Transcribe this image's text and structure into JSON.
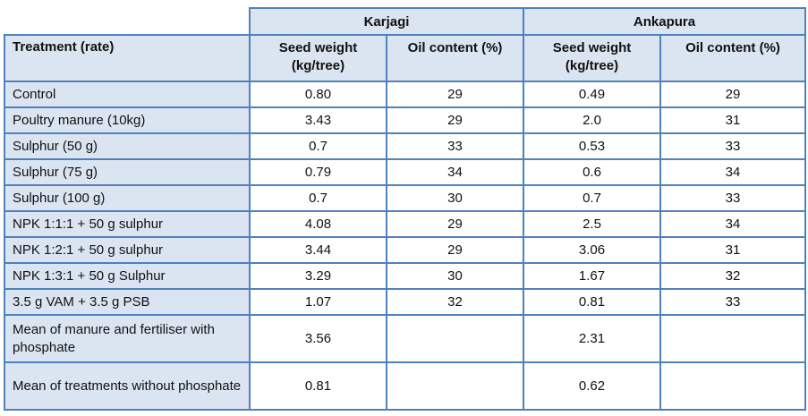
{
  "table": {
    "column_groups": [
      "Karjagi",
      "Ankapura"
    ],
    "treatment_header": "Treatment (rate)",
    "sub_headers": [
      "Seed weight (kg/tree)",
      "Oil content (%)",
      "Seed weight (kg/tree)",
      "Oil content (%)"
    ],
    "rows": [
      {
        "treatment": "Control",
        "values": [
          "0.80",
          "29",
          "0.49",
          "29"
        ]
      },
      {
        "treatment": "Poultry manure (10kg)",
        "values": [
          "3.43",
          "29",
          "2.0",
          "31"
        ]
      },
      {
        "treatment": "Sulphur (50 g)",
        "values": [
          "0.7",
          "33",
          "0.53",
          "33"
        ]
      },
      {
        "treatment": "Sulphur (75 g)",
        "values": [
          "0.79",
          "34",
          "0.6",
          "34"
        ]
      },
      {
        "treatment": "Sulphur (100 g)",
        "values": [
          "0.7",
          "30",
          "0.7",
          "33"
        ]
      },
      {
        "treatment": "NPK 1:1:1 + 50 g sulphur",
        "values": [
          "4.08",
          "29",
          "2.5",
          "34"
        ]
      },
      {
        "treatment": "NPK 1:2:1 + 50 g sulphur",
        "values": [
          "3.44",
          "29",
          "3.06",
          "31"
        ]
      },
      {
        "treatment": "NPK 1:3:1 + 50 g Sulphur",
        "values": [
          "3.29",
          "30",
          "1.67",
          "32"
        ]
      },
      {
        "treatment": "3.5 g VAM + 3.5 g PSB",
        "values": [
          "1.07",
          "32",
          "0.81",
          "33"
        ]
      },
      {
        "treatment": "Mean of manure and fertiliser with phosphate",
        "values": [
          "3.56",
          "",
          "2.31",
          ""
        ]
      },
      {
        "treatment": "Mean of treatments without phosphate",
        "values": [
          "0.81",
          "",
          "0.62",
          ""
        ]
      }
    ],
    "colors": {
      "border": "#4f81bd",
      "header_fill": "#dbe5f1",
      "text": "#111111"
    }
  }
}
